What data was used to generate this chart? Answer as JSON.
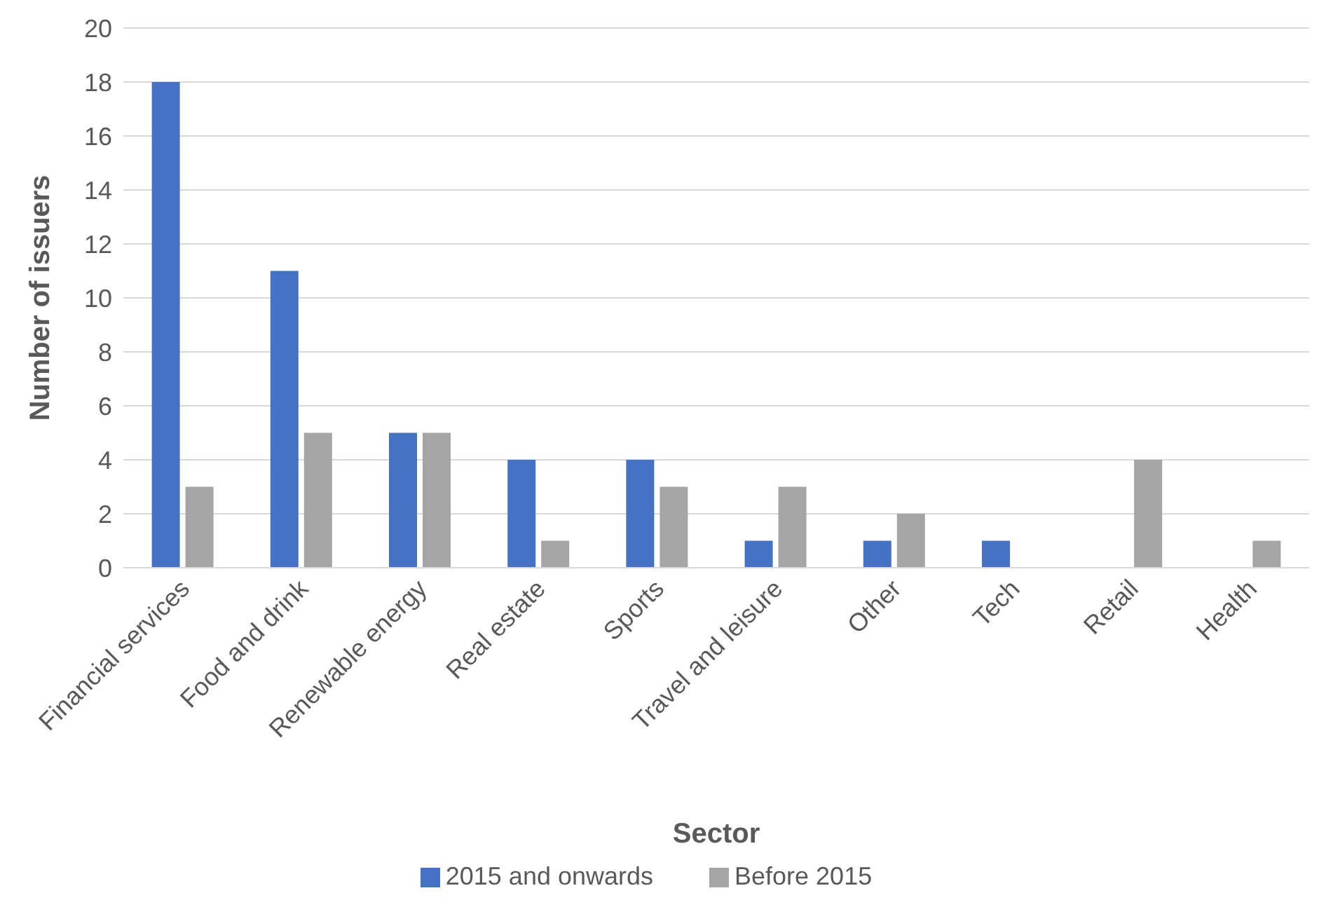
{
  "chart_data": {
    "type": "bar",
    "xlabel": "Sector",
    "ylabel": "Number of issuers",
    "categories": [
      "Financial services",
      "Food and drink",
      "Renewable energy",
      "Real estate",
      "Sports",
      "Travel and leisure",
      "Other",
      "Tech",
      "Retail",
      "Health"
    ],
    "series": [
      {
        "name": "2015 and onwards",
        "color": "#4472c4",
        "values": [
          18,
          11,
          5,
          4,
          4,
          1,
          1,
          1,
          0,
          0
        ]
      },
      {
        "name": "Before 2015",
        "color": "#a5a5a5",
        "values": [
          3,
          5,
          5,
          1,
          3,
          3,
          2,
          0,
          4,
          1
        ]
      }
    ],
    "ylim": [
      0,
      20
    ],
    "yticks": [
      0,
      2,
      4,
      6,
      8,
      10,
      12,
      14,
      16,
      18,
      20
    ],
    "grid": "y",
    "legend": "bottom"
  }
}
